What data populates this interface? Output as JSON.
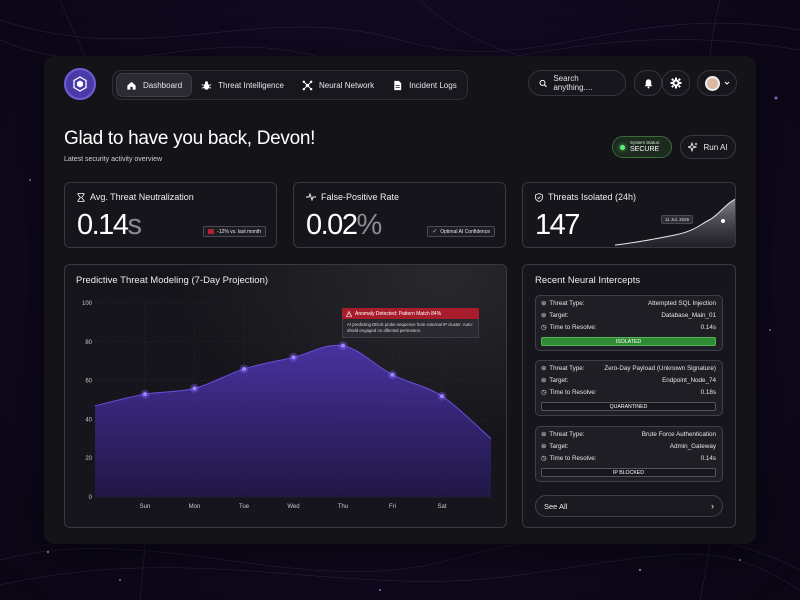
{
  "nav": {
    "items": [
      {
        "label": "Dashboard",
        "icon": "home-icon",
        "active": true
      },
      {
        "label": "Threat Intelligence",
        "icon": "bug-icon",
        "active": false
      },
      {
        "label": "Neural Network",
        "icon": "network-icon",
        "active": false
      },
      {
        "label": "Incident Logs",
        "icon": "document-icon",
        "active": false
      }
    ],
    "search_placeholder": "Search anything...."
  },
  "header": {
    "title": "Glad to have you back, Devon!",
    "subtitle": "Latest security activity overview",
    "status_label": "System Status:",
    "status_value": "SECURE",
    "run_ai_label": "Run AI"
  },
  "stats": {
    "neutralization": {
      "label": "Avg. Threat Neutralization",
      "value": "0.14",
      "unit": "s",
      "badge": "-12% vs. last month"
    },
    "false_positive": {
      "label": "False-Positive Rate",
      "value": "0.02",
      "unit": "%",
      "badge": "Optimal AI Confidence"
    },
    "isolated": {
      "label": "Threats Isolated (24h)",
      "value": "147",
      "tooltip": "11 Jul, 2026"
    }
  },
  "chart": {
    "title": "Predictive Threat Modeling (7-Day Projection)",
    "anomaly_title": "Anomaly Detected: Pattern Match 84%",
    "anomaly_body": "AI predicting DDoS probe sequence from external IP cluster. Auto-shield engaged on affected perimeters."
  },
  "chart_data": {
    "type": "area",
    "categories": [
      "Sun",
      "Mon",
      "Tue",
      "Wed",
      "Thu",
      "Fri",
      "Sat"
    ],
    "values": [
      53,
      56,
      66,
      72,
      78,
      63,
      52
    ],
    "start_value": 47,
    "end_value": 30,
    "ylim": [
      0,
      100
    ],
    "yticks": [
      0,
      20,
      40,
      60,
      80,
      100
    ],
    "grid": true,
    "fill_color": "#3e2a86",
    "line_color": "#6a4ee0"
  },
  "intercepts": {
    "title": "Recent Neural Intercepts",
    "labels": {
      "type": "Threat Type:",
      "target": "Target:",
      "time": "Time to Resolve:"
    },
    "items": [
      {
        "type": "Attempted SQL Injection",
        "target": "Database_Main_01",
        "time": "0.14s",
        "status": "ISOLATED",
        "status_color": "#2f8a34"
      },
      {
        "type": "Zero-Day Payload (Unknown Signature)",
        "target": "Endpoint_Node_74",
        "time": "0.18s",
        "status": "QUARANTINED",
        "status_color": "#17161c"
      },
      {
        "type": "Brute Force Authentication",
        "target": "Admin_Gateway",
        "time": "0.14s",
        "status": "IP BLOCKED",
        "status_color": "#17161c"
      }
    ],
    "see_all": "See All"
  }
}
